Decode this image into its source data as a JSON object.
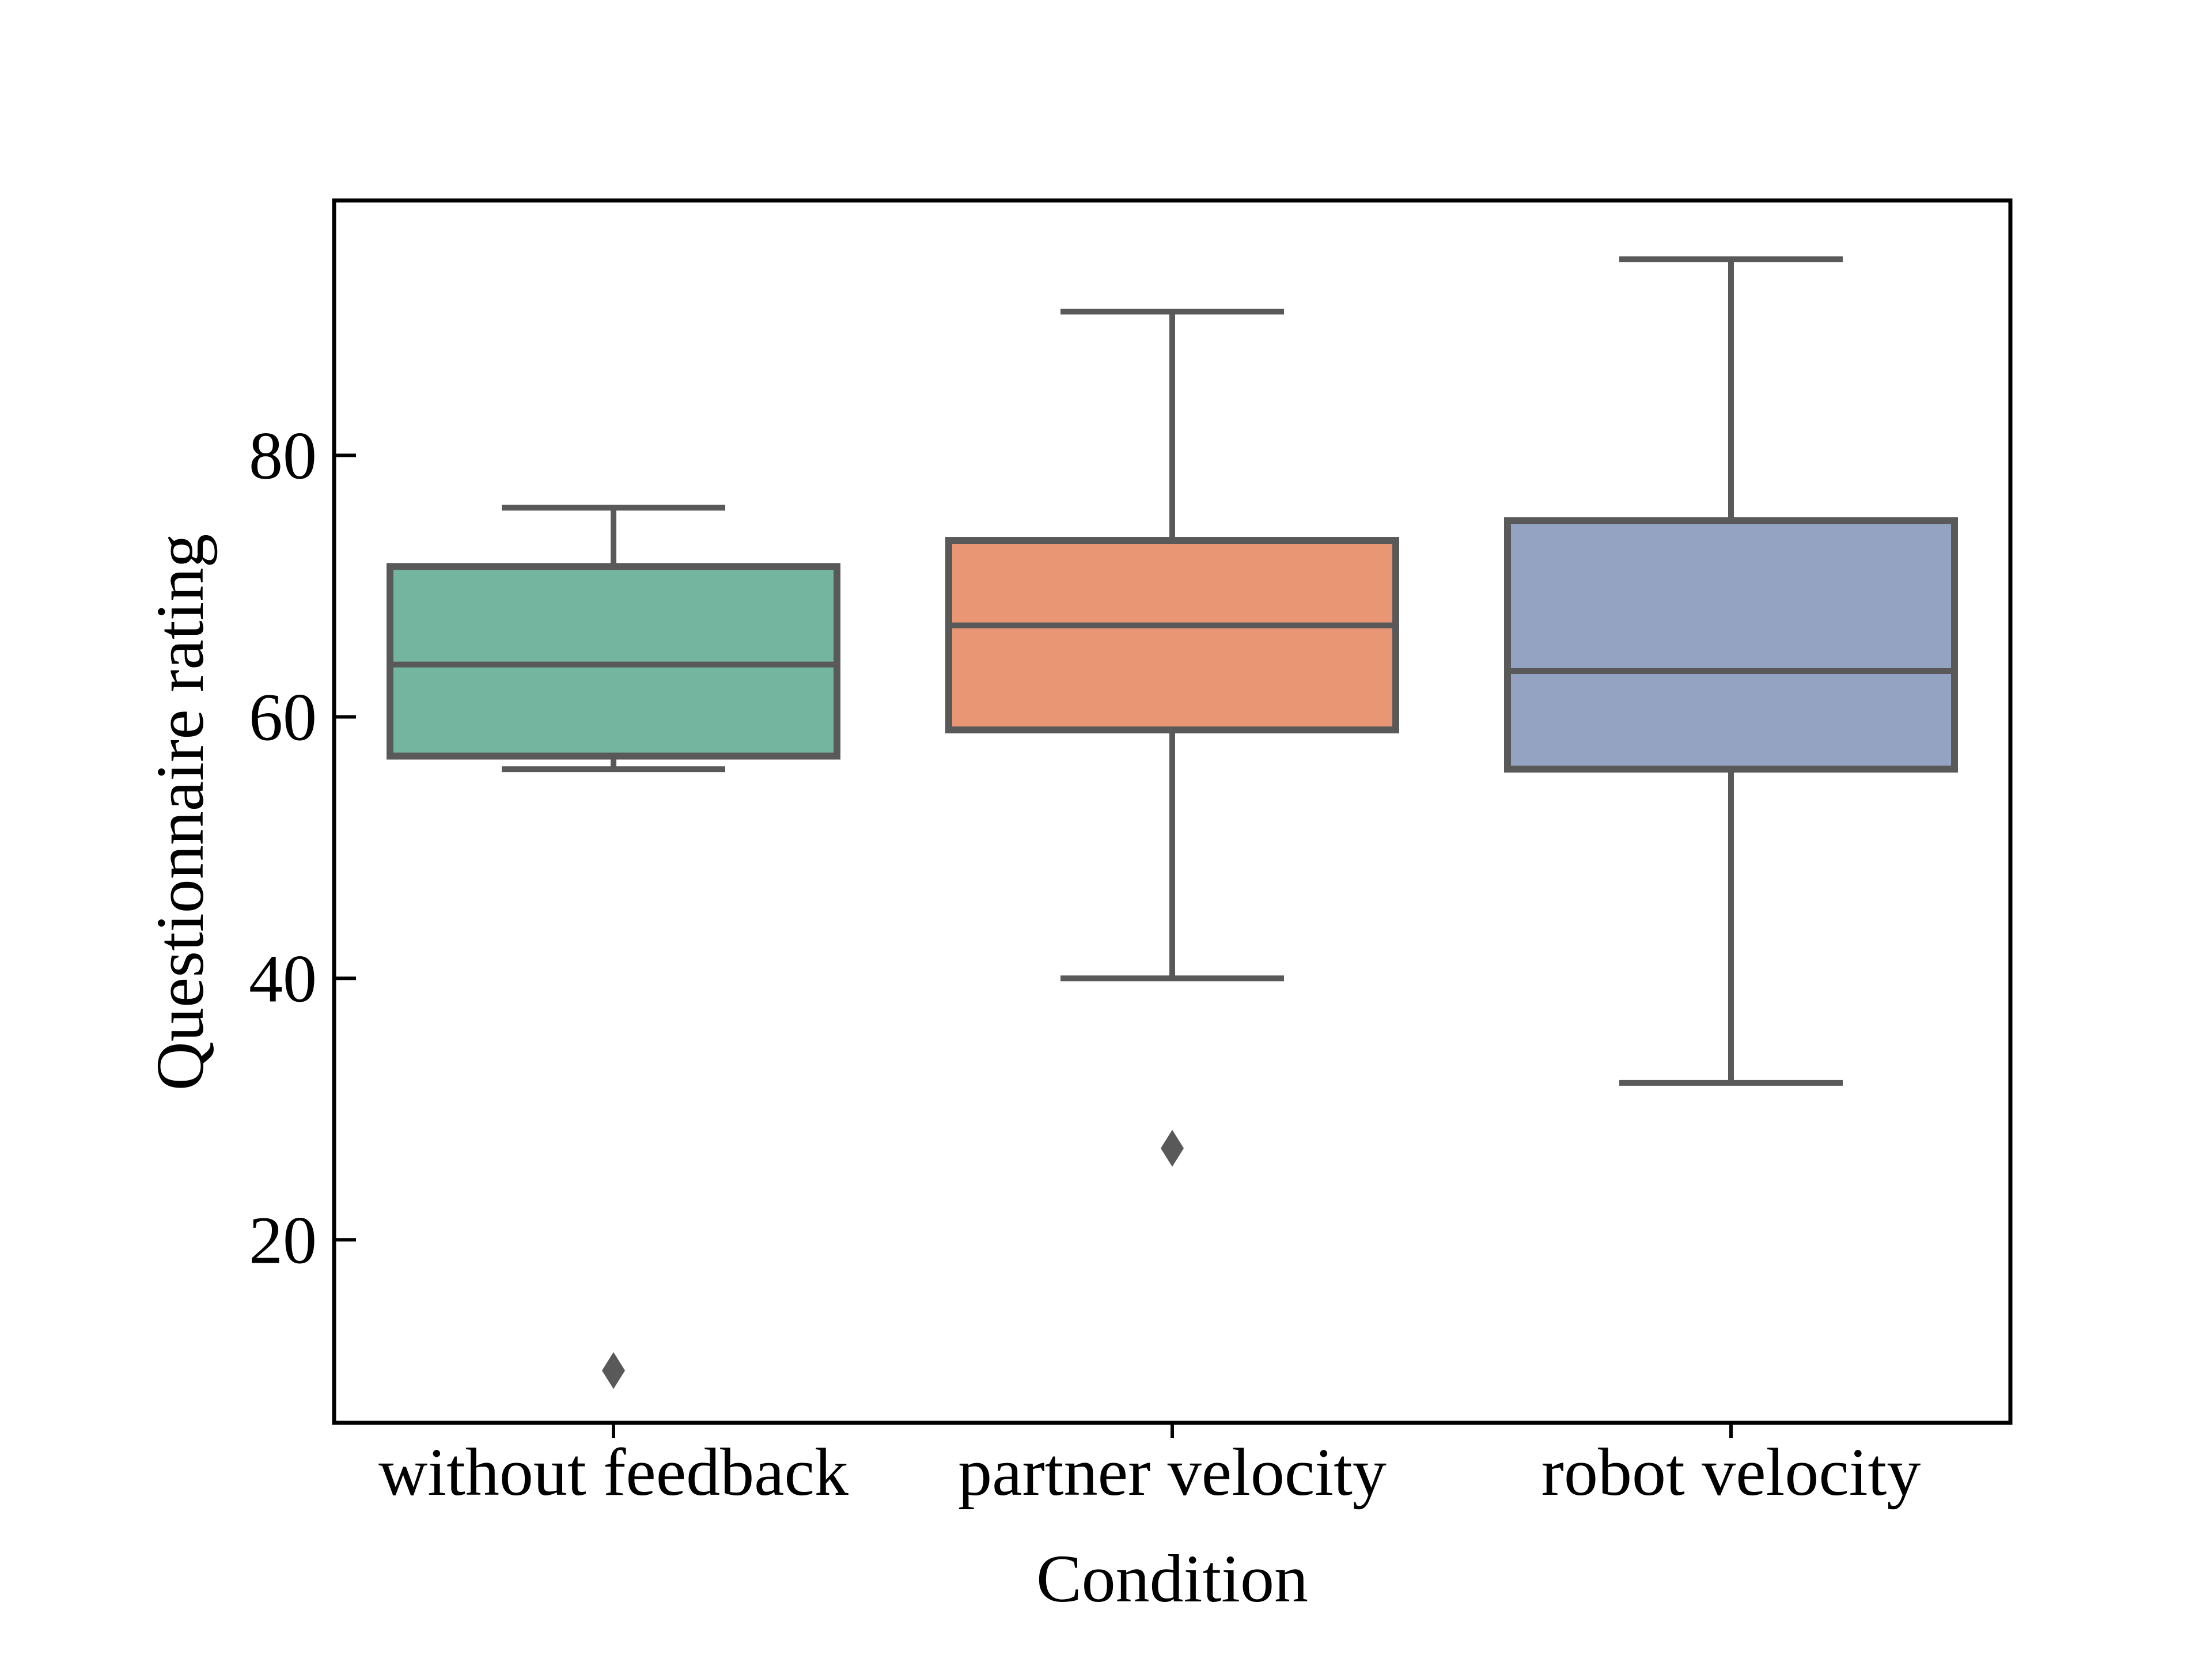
{
  "chart_data": {
    "type": "box",
    "title": "",
    "xlabel": "Condition",
    "ylabel": "Questionnaire rating",
    "ylim": [
      6,
      99.5
    ],
    "yticks": [
      20,
      40,
      60,
      80
    ],
    "categories": [
      "without feedback",
      "partner velocity",
      "robot velocity"
    ],
    "boxes": [
      {
        "name": "without feedback",
        "whisker_low": 56,
        "q1": 57,
        "median": 64,
        "q3": 71.5,
        "whisker_high": 76,
        "outliers": [
          10
        ],
        "color": "#73b59f"
      },
      {
        "name": "partner velocity",
        "whisker_low": 40,
        "q1": 59,
        "median": 67,
        "q3": 73.5,
        "whisker_high": 91,
        "outliers": [
          27
        ],
        "color": "#e89674"
      },
      {
        "name": "robot velocity",
        "whisker_low": 32,
        "q1": 56,
        "median": 63.5,
        "q3": 75,
        "whisker_high": 95,
        "outliers": [],
        "color": "#95a3c3"
      }
    ],
    "line_color": "#595959",
    "grid": false,
    "legend": "none"
  }
}
